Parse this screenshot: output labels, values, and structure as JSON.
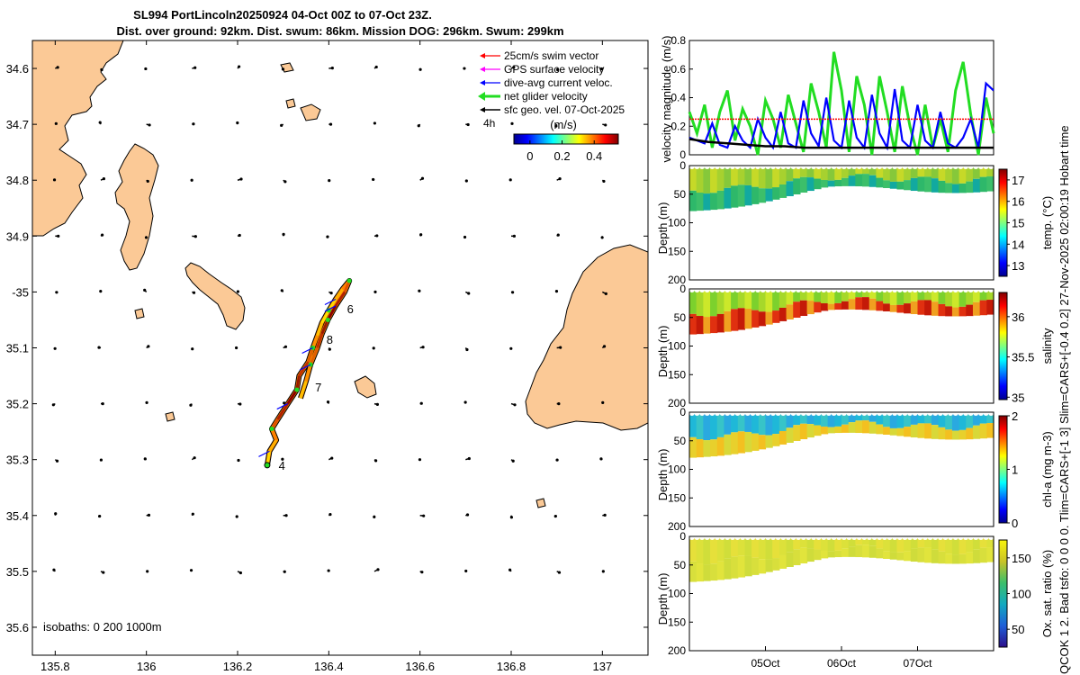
{
  "title": {
    "line1": "SL994 PortLincoln20250924 04-Oct 00Z to 07-Oct 23Z.",
    "line2": "Dist. over ground: 92km. Dist. swum: 86km. Mission DOG: 296km. Swum: 299km"
  },
  "side_note": "QCOK 1  2. Bad tsfo: 0  0  0  0. Tlim=CARS+[-1 3] Slim=CARS+[-0.4 0.2] 27-Nov-2025 02:00:19 Hobart time",
  "colors": {
    "land": "#fbc996",
    "swim_vector": "#ff0000",
    "gps_surface": "#ff00ff",
    "dive_avg_current": "#0000ff",
    "net_glider": "#22dd22",
    "sfc_geo": "#000000"
  },
  "chart_data": [
    {
      "type": "map",
      "name": "track-map",
      "xlim": [
        135.75,
        137.1
      ],
      "ylim": [
        -35.65,
        -34.55
      ],
      "x_ticks": [
        135.8,
        136,
        136.2,
        136.4,
        136.6,
        136.8,
        137
      ],
      "x_tick_labels": [
        "135.8",
        "136",
        "136.2",
        "136.4",
        "136.6",
        "136.8",
        "137"
      ],
      "y_ticks": [
        -34.6,
        -34.7,
        -34.8,
        -34.9,
        -35,
        -35.1,
        -35.2,
        -35.3,
        -35.4,
        -35.5,
        -35.6
      ],
      "y_tick_labels": [
        "34.6",
        "34.7",
        "34.8",
        "34.9",
        "-35",
        "35.1",
        "35.2",
        "35.3",
        "35.4",
        "35.5",
        "35.6"
      ],
      "legend": [
        {
          "label": "25cm/s swim vector",
          "color": "#ff0000"
        },
        {
          "label": "GPS surface velocity",
          "color": "#ff00ff"
        },
        {
          "label": "dive-avg current veloc.",
          "color": "#0000ff"
        },
        {
          "label": "net glider velocity",
          "color": "#22dd22"
        },
        {
          "label": "sfc geo. vel. 07-Oct-2025",
          "color": "#000000"
        }
      ],
      "legend_time_label": "4h",
      "colorbar": {
        "label": "(m/s)",
        "range": [
          -0.1,
          0.55
        ],
        "ticks": [
          0,
          0.2,
          0.4
        ],
        "tick_labels": [
          "0",
          "0.2",
          "0.4"
        ]
      },
      "isobath_label": "isobaths: 0   200  1000m",
      "track": [
        {
          "lon": 136.265,
          "lat": -35.31
        },
        {
          "lon": 136.27,
          "lat": -35.285
        },
        {
          "lon": 136.285,
          "lat": -35.265
        },
        {
          "lon": 136.275,
          "lat": -35.245
        },
        {
          "lon": 136.288,
          "lat": -35.228
        },
        {
          "lon": 136.31,
          "lat": -35.2
        },
        {
          "lon": 136.33,
          "lat": -35.175
        },
        {
          "lon": 136.335,
          "lat": -35.15
        },
        {
          "lon": 136.355,
          "lat": -35.125
        },
        {
          "lon": 136.365,
          "lat": -35.1
        },
        {
          "lon": 136.375,
          "lat": -35.078
        },
        {
          "lon": 136.385,
          "lat": -35.055
        },
        {
          "lon": 136.4,
          "lat": -35.033
        },
        {
          "lon": 136.415,
          "lat": -35.013
        },
        {
          "lon": 136.43,
          "lat": -34.995
        },
        {
          "lon": 136.445,
          "lat": -34.98
        },
        {
          "lon": 136.435,
          "lat": -35.0
        },
        {
          "lon": 136.415,
          "lat": -35.025
        },
        {
          "lon": 136.398,
          "lat": -35.05
        },
        {
          "lon": 136.385,
          "lat": -35.075
        },
        {
          "lon": 136.375,
          "lat": -35.1
        },
        {
          "lon": 136.36,
          "lat": -35.13
        },
        {
          "lon": 136.35,
          "lat": -35.16
        },
        {
          "lon": 136.338,
          "lat": -35.19
        }
      ],
      "day_markers": [
        {
          "label": "4",
          "lon": 136.29,
          "lat": -35.31
        },
        {
          "label": "6",
          "lon": 136.44,
          "lat": -35.03
        },
        {
          "label": "8",
          "lon": 136.395,
          "lat": -35.085
        },
        {
          "label": "7",
          "lon": 136.37,
          "lat": -35.17
        }
      ]
    },
    {
      "type": "line",
      "name": "velocity-magnitude",
      "ylabel": "velocity magnitude (m/s)",
      "xlim": [
        0,
        4
      ],
      "ylim": [
        0,
        0.8
      ],
      "y_ticks": [
        0,
        0.2,
        0.4,
        0.6,
        0.8
      ],
      "y_tick_labels": [
        "0",
        "0.2",
        "0.4",
        "0.6",
        "0.8"
      ],
      "series": [
        {
          "name": "net glider velocity",
          "color": "#22dd22",
          "x": [
            0,
            0.1,
            0.2,
            0.3,
            0.4,
            0.5,
            0.6,
            0.7,
            0.8,
            0.9,
            1.0,
            1.1,
            1.2,
            1.3,
            1.4,
            1.5,
            1.6,
            1.7,
            1.8,
            1.9,
            2.0,
            2.1,
            2.2,
            2.3,
            2.4,
            2.5,
            2.6,
            2.7,
            2.8,
            2.9,
            3.0,
            3.1,
            3.2,
            3.3,
            3.4,
            3.5,
            3.6,
            3.7,
            3.8,
            3.9,
            4.0
          ],
          "values": [
            0.3,
            0.15,
            0.35,
            0.05,
            0.3,
            0.45,
            0.1,
            0.32,
            0.2,
            0.0,
            0.38,
            0.25,
            0.05,
            0.42,
            0.22,
            0.02,
            0.5,
            0.3,
            0.05,
            0.72,
            0.45,
            0.02,
            0.55,
            0.35,
            0.0,
            0.55,
            0.3,
            0.02,
            0.48,
            0.2,
            0.0,
            0.35,
            0.05,
            0.25,
            0.02,
            0.45,
            0.65,
            0.28,
            0.0,
            0.4,
            0.15
          ]
        },
        {
          "name": "dive-avg current veloc.",
          "color": "#0000ff",
          "x": [
            0,
            0.1,
            0.2,
            0.3,
            0.4,
            0.5,
            0.6,
            0.7,
            0.8,
            0.9,
            1.0,
            1.1,
            1.2,
            1.3,
            1.4,
            1.5,
            1.6,
            1.7,
            1.8,
            1.9,
            2.0,
            2.1,
            2.2,
            2.3,
            2.4,
            2.5,
            2.6,
            2.7,
            2.8,
            2.9,
            3.0,
            3.1,
            3.2,
            3.3,
            3.4,
            3.5,
            3.6,
            3.7,
            3.8,
            3.9,
            4.0
          ],
          "values": [
            0.12,
            0.1,
            0.08,
            0.22,
            0.07,
            0.05,
            0.2,
            0.1,
            0.05,
            0.25,
            0.12,
            0.05,
            0.3,
            0.08,
            0.05,
            0.38,
            0.15,
            0.06,
            0.4,
            0.1,
            0.05,
            0.38,
            0.12,
            0.05,
            0.42,
            0.15,
            0.05,
            0.46,
            0.1,
            0.05,
            0.35,
            0.1,
            0.05,
            0.3,
            0.08,
            0.05,
            0.12,
            0.25,
            0.05,
            0.5,
            0.45
          ]
        },
        {
          "name": "swim vector",
          "color": "#ff0000",
          "x": [
            0,
            4
          ],
          "values": [
            0.25,
            0.25
          ]
        },
        {
          "name": "sfc geo. vel.",
          "color": "#000000",
          "x": [
            0,
            0.25,
            0.5,
            0.75,
            1.0,
            1.25,
            1.5,
            1.75,
            2.0,
            2.25,
            2.5,
            2.75,
            3.0,
            3.25,
            3.5,
            3.75,
            4.0
          ],
          "values": [
            0.11,
            0.09,
            0.08,
            0.07,
            0.06,
            0.06,
            0.05,
            0.05,
            0.05,
            0.05,
            0.05,
            0.05,
            0.05,
            0.05,
            0.05,
            0.05,
            0.05
          ]
        }
      ]
    },
    {
      "type": "section",
      "name": "temperature-section",
      "ylabel": "Depth (m)",
      "ylim": [
        0,
        200
      ],
      "y_ticks": [
        0,
        50,
        100,
        150,
        200
      ],
      "y_tick_labels": [
        "0",
        "50",
        "100",
        "150",
        "200"
      ],
      "colorbar_label": "temp. (°C)",
      "color_range": [
        12.5,
        17.5
      ],
      "colorbar_ticks": [
        13,
        14,
        15,
        16,
        17
      ],
      "colorbar_tick_labels": [
        "13",
        "14",
        "15",
        "16",
        "17"
      ]
    },
    {
      "type": "section",
      "name": "salinity-section",
      "ylabel": "Depth (m)",
      "ylim": [
        0,
        200
      ],
      "y_ticks": [
        0,
        50,
        100,
        150,
        200
      ],
      "y_tick_labels": [
        "0",
        "50",
        "100",
        "150",
        "200"
      ],
      "colorbar_label": "salinity",
      "color_range": [
        34.97,
        36.3
      ],
      "colorbar_ticks": [
        35,
        35.5,
        36
      ],
      "colorbar_tick_labels": [
        "35",
        "35.5",
        "36"
      ]
    },
    {
      "type": "section",
      "name": "chla-section",
      "ylabel": "Depth (m)",
      "ylim": [
        0,
        200
      ],
      "y_ticks": [
        0,
        50,
        100,
        150,
        200
      ],
      "y_tick_labels": [
        "0",
        "50",
        "100",
        "150",
        "200"
      ],
      "colorbar_label": "chl-a (mg m-3)",
      "color_range": [
        0,
        2
      ],
      "colorbar_ticks": [
        0,
        1,
        2
      ],
      "colorbar_tick_labels": [
        "0",
        "1",
        "2"
      ]
    },
    {
      "type": "section",
      "name": "oxygen-section",
      "ylabel": "Depth (m)",
      "ylim": [
        0,
        200
      ],
      "y_ticks": [
        0,
        50,
        100,
        150,
        200
      ],
      "y_tick_labels": [
        "0",
        "50",
        "100",
        "150",
        "200"
      ],
      "colorbar_label": "Ox. sat. ratio (%)",
      "color_range": [
        25,
        175
      ],
      "colorbar_ticks": [
        50,
        100,
        150
      ],
      "colorbar_tick_labels": [
        "50",
        "100",
        "150"
      ],
      "x_ticks": [
        1,
        2,
        3
      ],
      "x_tick_labels": [
        "05Oct",
        "06Oct",
        "07Oct"
      ]
    }
  ]
}
